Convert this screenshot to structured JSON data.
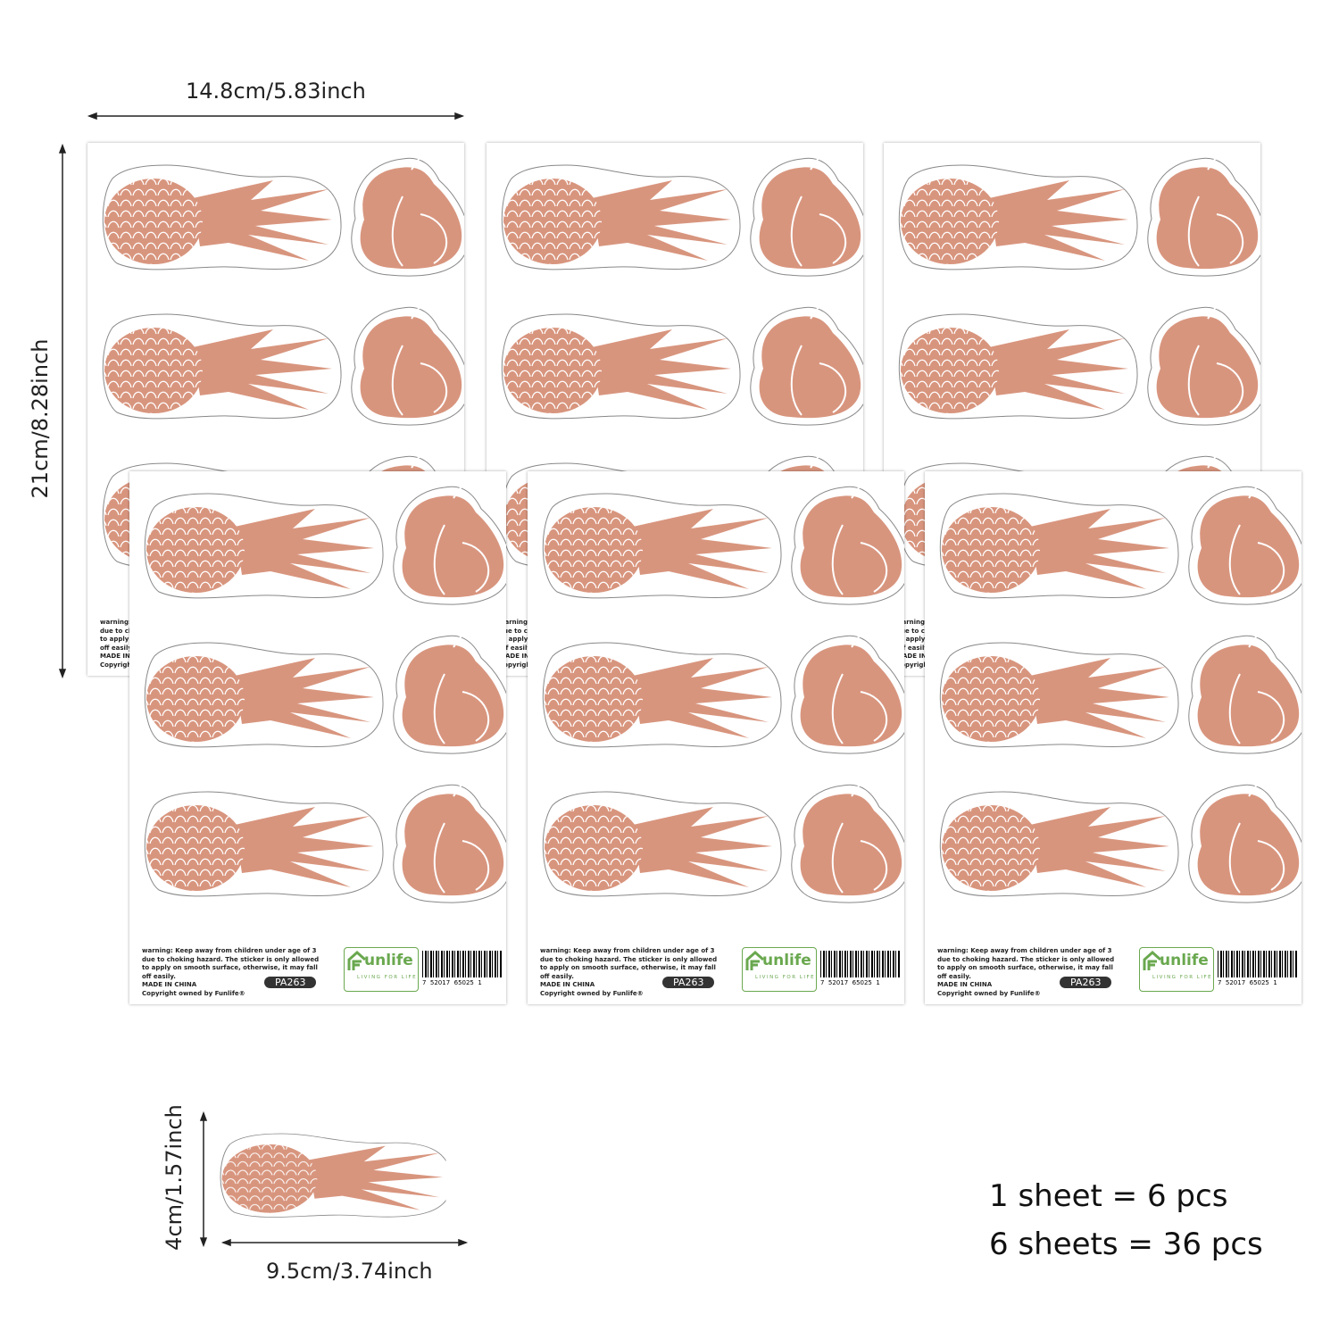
{
  "dimensions": {
    "sheet_width": "14.8cm/5.83inch",
    "sheet_height": "21cm/8.28inch",
    "sticker_height": "4cm/1.57inch",
    "sticker_width": "9.5cm/3.74inch"
  },
  "sheet": {
    "warning": "warning: Keep away from children under age of 3 due to choking hazard. The sticker is only allowed to apply on smooth surface, otherwise, it may fall off easily.",
    "origin": "MADE IN CHINA",
    "copyright": "Copyright owned by Funlife®",
    "brand": "unlife",
    "tagline": "LIVING FOR LIFE",
    "code": "PA263",
    "barcode": "7  52017  65025  1"
  },
  "summary": [
    "1 sheet = 6 pcs",
    "6 sheets = 36 pcs"
  ]
}
